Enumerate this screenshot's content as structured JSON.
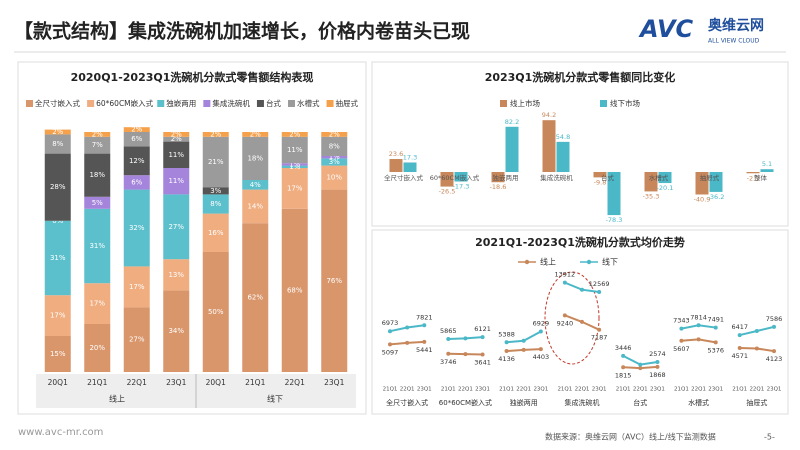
{
  "header": {
    "title": "【款式结构】集成洗碗机加速增长，价格内卷苗头已现",
    "logo": "AVC",
    "logo_cn": "奥维云网",
    "logo_en": "ALL VIEW CLOUD"
  },
  "footer": {
    "url": "www.avc-mr.com",
    "source": "数据来源：奥维云网（AVC）线上/线下监测数据",
    "page": "-5-"
  },
  "chart_data": [
    {
      "type": "stacked_bar",
      "title": "2020Q1-2023Q1洗碗机分款式零售额结构表现",
      "categories": [
        "20Q1",
        "21Q1",
        "22Q1",
        "23Q1",
        "20Q1",
        "21Q1",
        "22Q1",
        "23Q1"
      ],
      "groups": [
        "线上",
        "线下"
      ],
      "ylim": [
        0,
        100
      ],
      "series": [
        {
          "name": "全尺寸嵌入式",
          "color": "#d9966b",
          "values": [
            15,
            20,
            27,
            34,
            50,
            62,
            68,
            76
          ],
          "value_labels": [
            "15%",
            "20%",
            "27%",
            "34%",
            "50%",
            "62%",
            "68%",
            "76%"
          ]
        },
        {
          "name": "60*60CM嵌入式",
          "color": "#f0ad80",
          "values": [
            17,
            17,
            17,
            13,
            16,
            14,
            17,
            10
          ],
          "value_labels": [
            "17%",
            "17%",
            "17%",
            "13%",
            "16%",
            "14%",
            "17%",
            "10%"
          ]
        },
        {
          "name": "独嵌两用",
          "color": "#5bc0cc",
          "values": [
            31,
            31,
            32,
            27,
            8,
            4,
            1,
            3
          ],
          "value_labels": [
            "31%",
            "31%",
            "32%",
            "27%",
            "8%",
            "4%",
            "1%",
            "3%"
          ]
        },
        {
          "name": "集成洗碗机",
          "color": "#a584dc",
          "values": [
            0,
            5,
            6,
            11,
            0,
            0,
            1,
            1
          ],
          "value_labels": [
            "0%",
            "5%",
            "6%",
            "11%",
            null,
            null,
            "1%",
            "1%"
          ]
        },
        {
          "name": "台式",
          "color": "#555555",
          "values": [
            28,
            18,
            12,
            11,
            3,
            0,
            0,
            0
          ],
          "value_labels": [
            "28%",
            "18%",
            "12%",
            "11%",
            "3%",
            null,
            null,
            null
          ]
        },
        {
          "name": "水槽式",
          "color": "#9b9b9b",
          "values": [
            8,
            7,
            6,
            2,
            21,
            18,
            11,
            8
          ],
          "value_labels": [
            "8%",
            "7%",
            "6%",
            "2%",
            "21%",
            "18%",
            "11%",
            "8%"
          ]
        },
        {
          "name": "抽屉式",
          "color": "#f5a04a",
          "values": [
            2,
            2,
            2,
            2,
            2,
            2,
            2,
            2
          ],
          "value_labels": [
            "2%",
            "2%",
            "2%",
            "2%",
            "2%",
            "2%",
            "2%",
            "2%"
          ]
        }
      ]
    },
    {
      "type": "bar",
      "title": "2023Q1洗碗机分款式零售额同比变化",
      "categories": [
        "全尺寸嵌入式",
        "60*60CM嵌入式",
        "独嵌两用",
        "集成洗碗机",
        "台式",
        "水槽式",
        "抽屉式",
        "整体"
      ],
      "ylim": [
        -100,
        100
      ],
      "series": [
        {
          "name": "线上市场",
          "color": "#c8875a",
          "values": [
            23.6,
            -26.5,
            -18.6,
            94.2,
            -9.8,
            -35.3,
            -40.9,
            -2.3
          ]
        },
        {
          "name": "线下市场",
          "color": "#4bb8c8",
          "values": [
            17.3,
            -17.3,
            82.2,
            54.8,
            -78.3,
            -20.1,
            -36.2,
            5.1
          ]
        }
      ]
    },
    {
      "type": "line",
      "title": "2021Q1-2023Q1洗碗机分款式均价走势",
      "categories": [
        "全尺寸嵌入式",
        "60*60CM嵌入式",
        "独嵌两用",
        "集成洗碗机",
        "台式",
        "水槽式",
        "抽屉式"
      ],
      "x": [
        "21Q1",
        "22Q1",
        "23Q1"
      ],
      "ylim": [
        0,
        15000
      ],
      "series": [
        {
          "name": "线上",
          "color": "#c8875a",
          "values": [
            [
              5097,
              5300,
              5441
            ],
            [
              3746,
              3700,
              3641
            ],
            [
              4136,
              4300,
              4403
            ],
            [
              9240,
              8300,
              7187
            ],
            [
              1815,
              1700,
              1868
            ],
            [
              5607,
              5800,
              5376
            ],
            [
              4571,
              4500,
              4123
            ]
          ],
          "value_labels": [
            [
              "5097",
              null,
              "5441"
            ],
            [
              "3746",
              null,
              "3641"
            ],
            [
              "4136",
              null,
              "4403"
            ],
            [
              "9240",
              null,
              "7187"
            ],
            [
              "1815",
              null,
              "1868"
            ],
            [
              "5607",
              null,
              "5376"
            ],
            [
              "4571",
              null,
              "4123"
            ]
          ]
        },
        {
          "name": "线下",
          "color": "#4bb8c8",
          "values": [
            [
              6973,
              7500,
              7821
            ],
            [
              5865,
              5950,
              6121
            ],
            [
              5388,
              5600,
              6929
            ],
            [
              13912,
              12900,
              12569
            ],
            [
              3446,
              2200,
              2574
            ],
            [
              7343,
              7814,
              7491
            ],
            [
              6417,
              7000,
              7586
            ]
          ],
          "value_labels": [
            [
              "6973",
              null,
              "7821"
            ],
            [
              "5865",
              null,
              "6121"
            ],
            [
              "5388",
              null,
              "6929"
            ],
            [
              "13912",
              null,
              "12569"
            ],
            [
              "3446",
              null,
              "2574"
            ],
            [
              "7343",
              "7814",
              "7491"
            ],
            [
              "6417",
              null,
              "7586"
            ]
          ]
        }
      ]
    }
  ]
}
